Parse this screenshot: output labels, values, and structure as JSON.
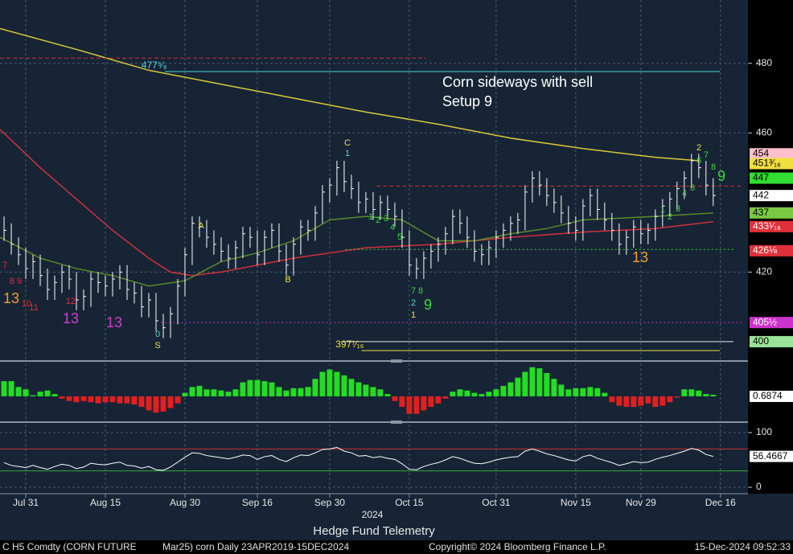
{
  "chart_data": [
    {
      "type": "ohlc",
      "xlim": [
        -0.56,
        102.8
      ],
      "ylim": [
        394.9,
        498.2
      ],
      "yticks": [
        420,
        460,
        480
      ],
      "grid": true,
      "bar_color": "#ffffff",
      "high": [
        436,
        434,
        430,
        427,
        425,
        425,
        421,
        419,
        422,
        422,
        420,
        415,
        420,
        420,
        419,
        420,
        422,
        422,
        417,
        416,
        414,
        414,
        408,
        410,
        418,
        427,
        436,
        436,
        435,
        432,
        430,
        428,
        429,
        433,
        433,
        432,
        432,
        434,
        434,
        428,
        430,
        435,
        435,
        439,
        445,
        447,
        452,
        452,
        448,
        446,
        443,
        443,
        442,
        442,
        440,
        438,
        432,
        424,
        426,
        428,
        430,
        433,
        438,
        438,
        436,
        432,
        428,
        429,
        432,
        434,
        436,
        437,
        445,
        449,
        449,
        447,
        444,
        442,
        439,
        436,
        441,
        444,
        444,
        440,
        437,
        434,
        432,
        435,
        435,
        434,
        438,
        441,
        443,
        446,
        449,
        454,
        454,
        452,
        447
      ],
      "low": [
        429,
        425,
        422,
        418,
        418,
        416,
        412,
        412,
        414,
        415,
        409,
        409,
        410,
        414,
        413,
        413,
        415,
        412,
        411,
        407,
        407,
        403,
        401,
        401,
        405,
        413,
        422,
        430,
        427,
        425,
        423,
        421,
        421,
        424,
        427,
        422,
        422,
        427,
        423,
        419,
        419,
        425,
        429,
        429,
        434,
        440,
        442,
        443,
        441,
        437,
        437,
        435,
        435,
        435,
        433,
        427,
        419,
        418,
        418,
        421,
        423,
        425,
        428,
        431,
        427,
        423,
        422,
        422,
        424,
        427,
        429,
        431,
        432,
        440,
        442,
        439,
        437,
        434,
        431,
        429,
        429,
        436,
        435,
        432,
        429,
        425,
        425,
        427,
        428,
        428,
        429,
        433,
        436,
        438,
        441,
        444,
        447,
        442,
        439
      ],
      "close": [
        432,
        428,
        425,
        421,
        423,
        419,
        415,
        417,
        420,
        418,
        412,
        413,
        418,
        417,
        416,
        418,
        420,
        415,
        414,
        410,
        412,
        406,
        404,
        408,
        416,
        425,
        434,
        433,
        430,
        428,
        426,
        424,
        427,
        431,
        430,
        425,
        430,
        432,
        426,
        422,
        428,
        433,
        432,
        437,
        443,
        445,
        450,
        446,
        444,
        440,
        441,
        438,
        440,
        438,
        436,
        430,
        422,
        421,
        424,
        426,
        428,
        431,
        436,
        434,
        430,
        426,
        425,
        427,
        430,
        432,
        434,
        435,
        443,
        447,
        445,
        442,
        440,
        437,
        434,
        432,
        439,
        442,
        438,
        435,
        432,
        428,
        430,
        433,
        431,
        432,
        436,
        439,
        441,
        444,
        447,
        452,
        450,
        445,
        442
      ],
      "lines": [
        {
          "color": "#d8c838",
          "x": [
            -0.56,
            10,
            20,
            30,
            40,
            50,
            60,
            70,
            80,
            90,
            96
          ],
          "values": [
            490,
            484,
            478,
            474,
            470,
            466,
            462.5,
            458.5,
            455.5,
            453,
            452
          ]
        },
        {
          "color": "#d0303a",
          "x": [
            -0.56,
            5,
            10,
            15,
            20,
            23,
            26,
            30,
            35,
            40,
            50,
            60,
            70,
            80,
            90,
            98
          ],
          "values": [
            461,
            450,
            441,
            432,
            424,
            420,
            419,
            420,
            422,
            424,
            427,
            428,
            430,
            431.5,
            432.5,
            434.5
          ]
        },
        {
          "color": "#5a8a2a",
          "x": [
            -0.56,
            5,
            10,
            15,
            20,
            25,
            30,
            35,
            40,
            45,
            50,
            55,
            60,
            65,
            70,
            75,
            80,
            85,
            90,
            98
          ],
          "values": [
            430,
            424,
            421,
            419,
            416,
            417.5,
            423,
            425.5,
            429,
            435,
            436,
            435,
            429,
            429,
            431,
            432.5,
            435,
            435.5,
            436,
            437
          ]
        }
      ],
      "levels": [
        {
          "value": 481.5,
          "x": [
            -0.56,
            58.3
          ],
          "color": "#d03030",
          "style": "dashed"
        },
        {
          "value": 477.625,
          "x": [
            22.2,
            98.9
          ],
          "color": "#4fd8d8",
          "style": "solid",
          "label": "477⁵⁄₈"
        },
        {
          "value": 444.7,
          "x": [
            51.5,
            102.2
          ],
          "color": "#d03030",
          "style": "dashed"
        },
        {
          "value": 426.5,
          "x": [
            47.2,
            100.8
          ],
          "color": "#33dd33",
          "style": "dotted"
        },
        {
          "value": 405.5,
          "x": [
            21.7,
            102.2
          ],
          "color": "#cc33cc",
          "style": "dotted"
        },
        {
          "value": 400,
          "x": [
            46.7,
            100.8
          ],
          "color": "#e8e8e8",
          "style": "solid"
        },
        {
          "value": 397.4375,
          "x": [
            49.4,
            98.9
          ],
          "color": "#f0e040",
          "style": "solid",
          "label": "397⁷⁄₁₆"
        }
      ],
      "tags": [
        {
          "value": 454,
          "label": "454",
          "color": "#ffc0cb",
          "text_color": "#000000"
        },
        {
          "value": 451.1875,
          "label": "451³⁄₁₆",
          "color": "#f0e040",
          "text_color": "#000000"
        },
        {
          "value": 447,
          "label": "447",
          "color": "#33dd33",
          "text_color": "#000000"
        },
        {
          "value": 442,
          "label": "442",
          "color": "#ffffff",
          "text_color": "#000000"
        },
        {
          "value": 437,
          "label": "437",
          "color": "#7ac943",
          "text_color": "#000000"
        },
        {
          "value": 433.0625,
          "label": "433¹⁄₁₆",
          "color": "#e0303a",
          "text_color": "#ffffff"
        },
        {
          "value": 426.125,
          "label": "426⅛",
          "color": "#e0303a",
          "text_color": "#ffffff"
        },
        {
          "value": 405.5,
          "label": "405½",
          "color": "#cc33cc",
          "text_color": "#ffffff"
        },
        {
          "value": 400,
          "label": "400",
          "color": "#9be39b",
          "text_color": "#000000"
        }
      ],
      "note": [
        "Corn sideways with sell",
        "Setup 9"
      ],
      "marks": [
        {
          "text": "13",
          "color": "#f0a030"
        },
        {
          "text": "13",
          "color": "#d040d0"
        },
        {
          "text": "13",
          "color": "#d040d0"
        },
        {
          "text": "9",
          "color": "#33dd33"
        },
        {
          "text": "13",
          "color": "#f0a030"
        },
        {
          "text": "9",
          "color": "#33dd33"
        },
        {
          "text": "C",
          "color": "#f0e040"
        },
        {
          "text": "B",
          "color": "#f0e040"
        },
        {
          "text": "A",
          "color": "#f0e040"
        },
        {
          "text": "S",
          "color": "#f0e040"
        },
        {
          "text": "0",
          "color": "#4fd8d8"
        },
        {
          "text": "1",
          "color": "#4fd8d8"
        },
        {
          "text": "2",
          "color": "#4fd8d8"
        },
        {
          "text": "1",
          "color": "#f0e040"
        },
        {
          "text": "7",
          "color": "#33dd33"
        },
        {
          "text": "8",
          "color": "#33dd33"
        },
        {
          "text": "1",
          "color": "#33dd33"
        },
        {
          "text": "2",
          "color": "#33dd33"
        },
        {
          "text": "3",
          "color": "#33dd33"
        },
        {
          "text": "4",
          "color": "#33dd33"
        },
        {
          "text": "5",
          "color": "#33dd33"
        },
        {
          "text": "1",
          "color": "#33dd33"
        },
        {
          "text": "2",
          "color": "#33dd33"
        },
        {
          "text": "3",
          "color": "#33dd33"
        },
        {
          "text": "4",
          "color": "#33dd33"
        },
        {
          "text": "5",
          "color": "#33dd33"
        },
        {
          "text": "6",
          "color": "#33dd33"
        },
        {
          "text": "7",
          "color": "#33dd33"
        },
        {
          "text": "8",
          "color": "#33dd33"
        },
        {
          "text": "2",
          "color": "#f0e040"
        },
        {
          "text": "7",
          "color": "#e03030"
        },
        {
          "text": "8",
          "color": "#e03030"
        },
        {
          "text": "9",
          "color": "#e03030"
        },
        {
          "text": "10",
          "color": "#e03030"
        },
        {
          "text": "11",
          "color": "#e03030"
        },
        {
          "text": "12",
          "color": "#e03030"
        }
      ]
    },
    {
      "type": "bar",
      "xlim": [
        -0.56,
        102.8
      ],
      "ylim": [
        -10,
        14.1
      ],
      "positive_color": "#22dd22",
      "negative_color": "#e02020",
      "values": [
        6.5,
        6.5,
        4,
        3,
        0.5,
        2,
        2.5,
        1,
        -1,
        -2,
        -2.5,
        -2,
        -2.5,
        -3,
        -2.5,
        -2.5,
        -3,
        -3,
        -3.5,
        -4.5,
        -6,
        -7,
        -6.5,
        -5,
        -3,
        1.5,
        4,
        4.5,
        3,
        3,
        2.5,
        2,
        3,
        6,
        7,
        7,
        6.5,
        6,
        4,
        2.5,
        3.5,
        3.5,
        4,
        7.5,
        10.5,
        11.5,
        10.5,
        9,
        7.5,
        6,
        5,
        4,
        3,
        1,
        -2,
        -4.5,
        -7.5,
        -7.5,
        -6,
        -4.5,
        -3,
        -1,
        2,
        3,
        2.5,
        1.5,
        1,
        2,
        3,
        4.5,
        6,
        8,
        10.5,
        12.5,
        12,
        10,
        7.5,
        5,
        3,
        3.5,
        3.5,
        4,
        3.5,
        1.5,
        -2.5,
        -4,
        -4.5,
        -4.5,
        -4,
        -3,
        -4.5,
        -4,
        -2.5,
        -0.5,
        3,
        3,
        2.5,
        1,
        0.6874
      ]
    },
    {
      "type": "line",
      "xlim": [
        -0.56,
        102.8
      ],
      "ylim": [
        -8.8,
        114.7
      ],
      "yticks": [
        0,
        100
      ],
      "color": "#ffffff",
      "levels": [
        {
          "value": 70,
          "color": "#d03030"
        },
        {
          "value": 30,
          "color": "#33aa33"
        }
      ],
      "values": [
        45,
        40,
        38,
        36,
        40,
        36,
        33,
        38,
        42,
        40,
        34,
        37,
        44,
        42,
        41,
        44,
        46,
        40,
        39,
        35,
        38,
        32,
        31,
        37,
        46,
        55,
        63,
        62,
        58,
        56,
        54,
        52,
        55,
        59,
        58,
        51,
        56,
        58,
        51,
        47,
        54,
        59,
        58,
        63,
        69,
        70,
        73,
        66,
        63,
        57,
        58,
        54,
        56,
        53,
        51,
        43,
        33,
        32,
        38,
        42,
        45,
        50,
        56,
        53,
        48,
        44,
        43,
        46,
        50,
        53,
        55,
        56,
        66,
        70,
        66,
        61,
        58,
        54,
        50,
        48,
        56,
        59,
        53,
        49,
        45,
        40,
        43,
        47,
        45,
        46,
        51,
        55,
        58,
        62,
        66,
        71,
        68,
        60,
        56.4667
      ],
      "xticks": [
        {
          "value": 3,
          "label": "Jul 31"
        },
        {
          "value": 14,
          "label": "Aug 15"
        },
        {
          "value": 25,
          "label": "Aug 30"
        },
        {
          "value": 35,
          "label": "Sep 16"
        },
        {
          "value": 45,
          "label": "Sep 30"
        },
        {
          "value": 56,
          "label": "Oct 15"
        },
        {
          "value": 68,
          "label": "Oct 31"
        },
        {
          "value": 79,
          "label": "Nov 15"
        },
        {
          "value": 88,
          "label": "Nov 29"
        },
        {
          "value": 99,
          "label": "Dec 16"
        }
      ],
      "year_label": "2024"
    }
  ],
  "footer": {
    "title": "Hedge Fund Telemetry",
    "ticker": "C H5 Comdty (CORN FUTURE",
    "series": "Mar25) corn  Daily 23APR2019-15DEC2024",
    "copyright": "Copyright© 2024 Bloomberg Finance L.P.",
    "timestamp": "15-Dec-2024 09:52:33"
  }
}
